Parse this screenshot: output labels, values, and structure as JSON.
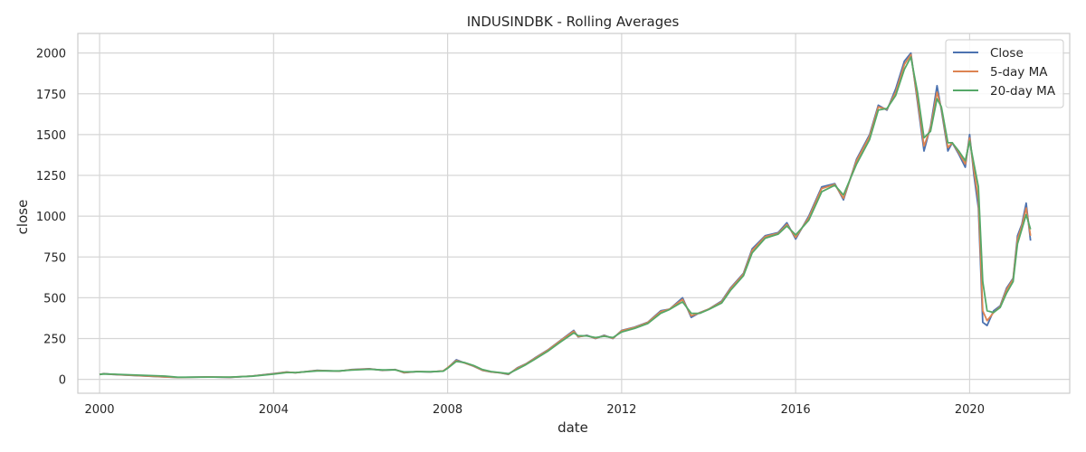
{
  "chart_data": {
    "type": "line",
    "title": "INDUSINDBK - Rolling Averages",
    "xlabel": "date",
    "ylabel": "close",
    "xlim": [
      1999.5,
      2022.3
    ],
    "ylim": [
      -85,
      2120
    ],
    "x_ticks": [
      2000,
      2004,
      2008,
      2012,
      2016,
      2020
    ],
    "x_tick_labels": [
      "2000",
      "2004",
      "2008",
      "2012",
      "2016",
      "2020"
    ],
    "y_ticks": [
      0,
      250,
      500,
      750,
      1000,
      1250,
      1500,
      1750,
      2000
    ],
    "y_tick_labels": [
      "0",
      "250",
      "500",
      "750",
      "1000",
      "1250",
      "1500",
      "1750",
      "2000"
    ],
    "grid": true,
    "legend_position": "top-right",
    "x": [
      2000.0,
      2000.1,
      2000.3,
      2001.5,
      2001.8,
      2002.5,
      2003.0,
      2003.5,
      2004.0,
      2004.3,
      2004.5,
      2005.0,
      2005.5,
      2005.8,
      2006.2,
      2006.5,
      2006.8,
      2007.0,
      2007.3,
      2007.6,
      2007.9,
      2008.0,
      2008.2,
      2008.4,
      2008.6,
      2008.8,
      2009.0,
      2009.2,
      2009.4,
      2009.6,
      2009.8,
      2010.0,
      2010.3,
      2010.6,
      2010.9,
      2011.0,
      2011.2,
      2011.4,
      2011.6,
      2011.8,
      2012.0,
      2012.3,
      2012.6,
      2012.9,
      2013.1,
      2013.4,
      2013.6,
      2013.8,
      2014.0,
      2014.3,
      2014.5,
      2014.8,
      2015.0,
      2015.3,
      2015.6,
      2015.8,
      2016.0,
      2016.3,
      2016.6,
      2016.9,
      2017.1,
      2017.4,
      2017.7,
      2017.9,
      2018.1,
      2018.3,
      2018.5,
      2018.65,
      2018.8,
      2018.95,
      2019.1,
      2019.25,
      2019.35,
      2019.5,
      2019.6,
      2019.75,
      2019.9,
      2020.0,
      2020.1,
      2020.2,
      2020.3,
      2020.4,
      2020.55,
      2020.7,
      2020.85,
      2021.0,
      2021.1,
      2021.2,
      2021.3,
      2021.4
    ],
    "series": [
      {
        "name": "Close",
        "color": "#4c72b0",
        "values": [
          30,
          35,
          30,
          15,
          12,
          15,
          12,
          20,
          35,
          45,
          40,
          55,
          50,
          60,
          65,
          55,
          60,
          40,
          48,
          45,
          52,
          70,
          120,
          100,
          80,
          55,
          45,
          40,
          30,
          70,
          95,
          130,
          180,
          240,
          300,
          260,
          270,
          250,
          270,
          250,
          300,
          320,
          350,
          420,
          430,
          500,
          380,
          410,
          430,
          480,
          560,
          650,
          800,
          880,
          900,
          960,
          860,
          1000,
          1180,
          1200,
          1100,
          1350,
          1500,
          1680,
          1650,
          1780,
          1950,
          2000,
          1700,
          1400,
          1550,
          1800,
          1650,
          1400,
          1450,
          1380,
          1300,
          1500,
          1250,
          1050,
          350,
          330,
          420,
          450,
          560,
          620,
          880,
          950,
          1080,
          850
        ]
      },
      {
        "name": "5-day MA",
        "color": "#dd8452",
        "values": [
          30,
          34,
          31,
          16,
          12,
          15,
          13,
          20,
          34,
          44,
          41,
          54,
          51,
          59,
          64,
          56,
          59,
          42,
          48,
          46,
          52,
          72,
          115,
          100,
          82,
          56,
          46,
          40,
          32,
          68,
          94,
          128,
          178,
          238,
          295,
          262,
          268,
          252,
          268,
          252,
          298,
          318,
          348,
          415,
          430,
          490,
          390,
          408,
          430,
          475,
          555,
          645,
          790,
          875,
          895,
          950,
          870,
          990,
          1170,
          1195,
          1110,
          1340,
          1490,
          1670,
          1655,
          1760,
          1930,
          1990,
          1720,
          1430,
          1540,
          1760,
          1660,
          1420,
          1450,
          1390,
          1320,
          1480,
          1280,
          1100,
          420,
          360,
          410,
          445,
          550,
          615,
          860,
          940,
          1050,
          880
        ]
      },
      {
        "name": "20-day MA",
        "color": "#55a868",
        "values": [
          30,
          33,
          32,
          20,
          13,
          14,
          14,
          19,
          32,
          42,
          42,
          52,
          52,
          57,
          62,
          58,
          58,
          46,
          47,
          47,
          50,
          68,
          110,
          102,
          85,
          60,
          48,
          42,
          35,
          62,
          90,
          122,
          172,
          230,
          285,
          268,
          266,
          256,
          264,
          256,
          290,
          312,
          342,
          405,
          428,
          475,
          405,
          405,
          428,
          468,
          545,
          635,
          775,
          865,
          890,
          940,
          885,
          975,
          1150,
          1190,
          1130,
          1320,
          1470,
          1650,
          1660,
          1740,
          1900,
          1975,
          1760,
          1480,
          1520,
          1720,
          1670,
          1450,
          1450,
          1400,
          1340,
          1460,
          1320,
          1180,
          600,
          420,
          410,
          440,
          530,
          600,
          830,
          920,
          1010,
          920
        ]
      }
    ]
  }
}
